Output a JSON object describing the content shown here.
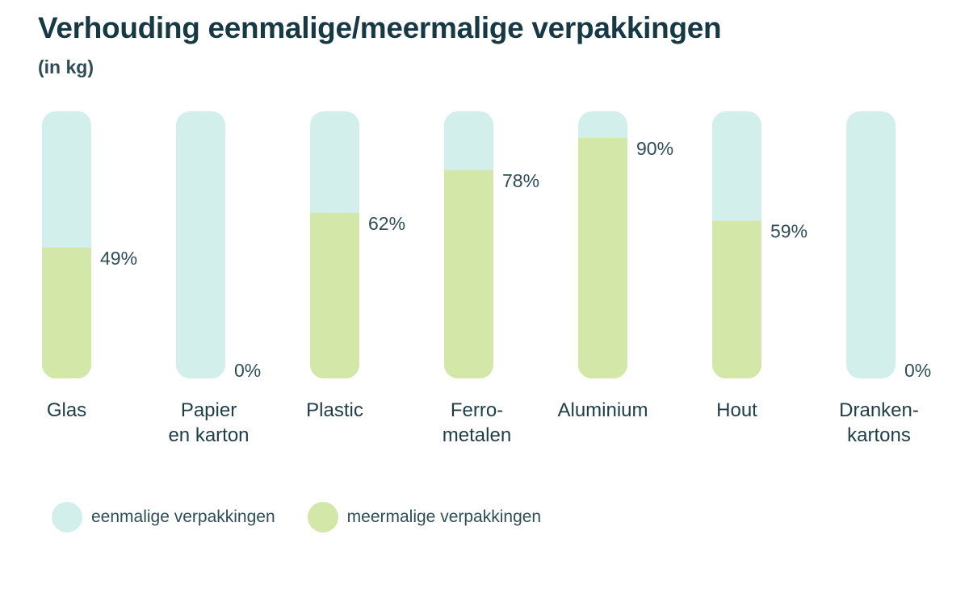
{
  "chart_data": {
    "type": "bar",
    "stacked": true,
    "orientation": "vertical",
    "title": "Verhouding eenmalige/meermalige verpakkingen",
    "subtitle": "(in kg)",
    "categories": [
      [
        "Glas"
      ],
      [
        "Papier",
        "en karton"
      ],
      [
        "Plastic"
      ],
      [
        "Ferro-",
        "metalen"
      ],
      [
        "Aluminium"
      ],
      [
        "Hout"
      ],
      [
        "Dranken-",
        "kartons"
      ]
    ],
    "series": [
      {
        "name": "eenmalige verpakkingen",
        "color": "#d2efec",
        "values": [
          51,
          100,
          38,
          22,
          10,
          41,
          100
        ]
      },
      {
        "name": "meermalige verpakkingen",
        "color": "#d2e7a8",
        "values": [
          49,
          0,
          62,
          78,
          90,
          59,
          0
        ]
      }
    ],
    "data_labels": [
      "49%",
      "0%",
      "62%",
      "78%",
      "90%",
      "59%",
      "0%"
    ],
    "ylim": [
      0,
      100
    ],
    "grid": false,
    "legend_position": "bottom-left"
  }
}
